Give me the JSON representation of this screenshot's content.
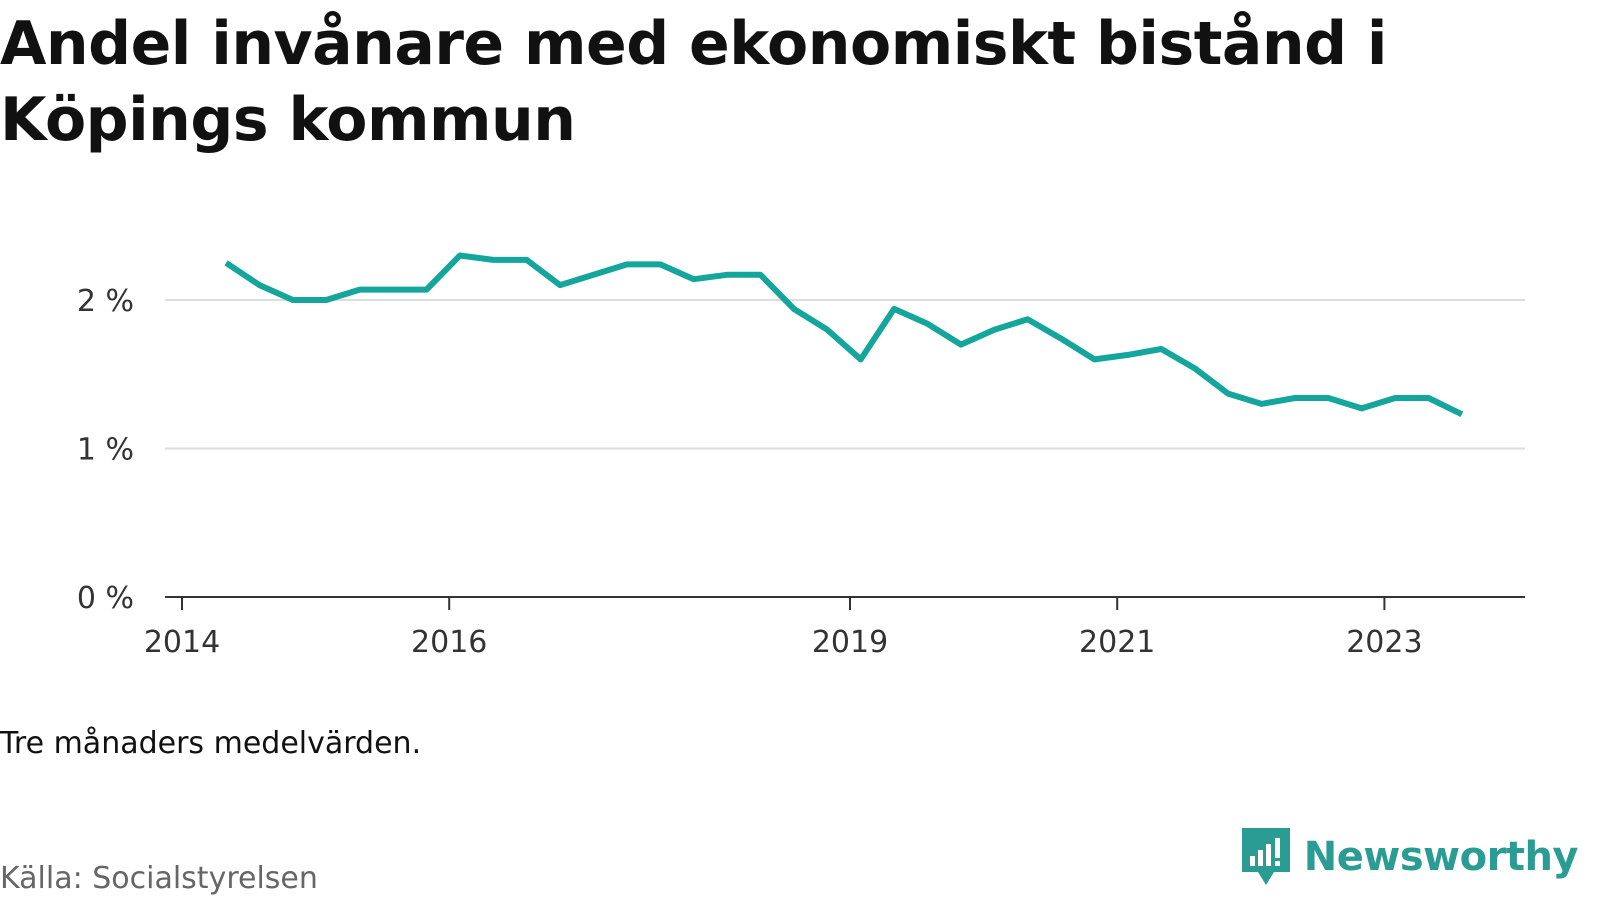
{
  "title": "Andel invånare med ekonomiskt bistånd i Köpings kommun",
  "note": "Tre månaders medelvärden.",
  "source": "Källa: Socialstyrelsen",
  "brand": {
    "name": "Newsworthy",
    "icon": "newsworthy-chart-icon"
  },
  "colors": {
    "line": "#14a59c",
    "grid": "#dddddd",
    "axis": "#333333",
    "brand": "#2b9c93",
    "source_text": "#666666"
  },
  "chart_data": {
    "type": "line",
    "title": "Andel invånare med ekonomiskt bistånd i Köpings kommun",
    "xlabel": "",
    "ylabel": "",
    "ylim": [
      0,
      2.5
    ],
    "yticks": [
      0,
      1,
      2
    ],
    "ytick_labels": [
      "0 %",
      "1 %",
      "2 %"
    ],
    "xlim": [
      2014,
      2024
    ],
    "xticks": [
      2014,
      2016,
      2019,
      2021,
      2023
    ],
    "xtick_labels": [
      "2014",
      "2016",
      "2019",
      "2021",
      "2023"
    ],
    "grid": true,
    "series": [
      {
        "values": [
          2.25,
          2.1,
          2.0,
          2.0,
          2.07,
          2.07,
          2.07,
          2.3,
          2.27,
          2.27,
          2.1,
          2.17,
          2.24,
          2.24,
          2.14,
          2.17,
          2.17,
          1.94,
          1.8,
          1.6,
          1.94,
          1.84,
          1.7,
          1.8,
          1.87,
          1.74,
          1.6,
          1.63,
          1.67,
          1.54,
          1.37,
          1.3,
          1.34,
          1.34,
          1.27,
          1.34,
          1.34,
          1.23
        ],
        "x_start": 2014.33,
        "x_step": 0.25
      }
    ]
  }
}
